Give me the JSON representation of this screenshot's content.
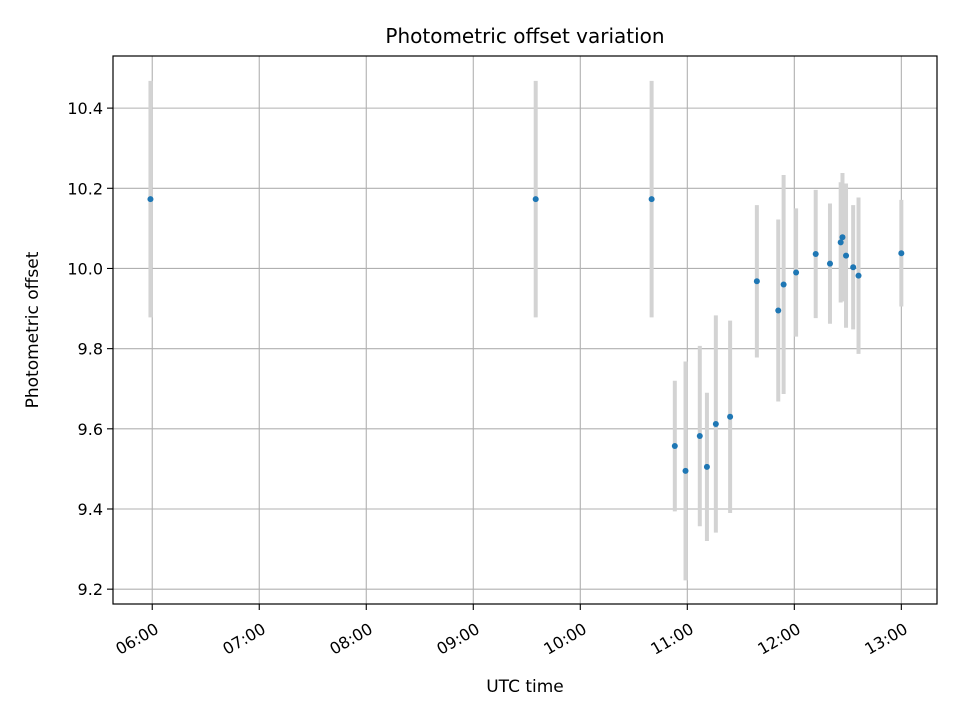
{
  "chart_data": {
    "type": "scatter",
    "title": "Photometric offset variation",
    "xlabel": "UTC time",
    "ylabel": "Photometric offset",
    "x_axis_type": "time",
    "xlim": [
      "05:38",
      "13:20"
    ],
    "ylim": [
      9.163,
      10.53
    ],
    "x_ticks": [
      "06:00",
      "07:00",
      "08:00",
      "09:00",
      "10:00",
      "11:00",
      "12:00",
      "13:00"
    ],
    "y_ticks": [
      9.2,
      9.4,
      9.6,
      9.8,
      10.0,
      10.2,
      10.4
    ],
    "y_tick_labels": [
      "9.2",
      "9.4",
      "9.6",
      "9.8",
      "10.0",
      "10.2",
      "10.4"
    ],
    "grid": true,
    "marker_color": "#1f77b4",
    "errorbar_color": "#d3d3d3",
    "series": [
      {
        "points": [
          {
            "x": "05:59",
            "y": 10.173,
            "err": 0.295
          },
          {
            "x": "09:35",
            "y": 10.173,
            "err": 0.295
          },
          {
            "x": "10:40",
            "y": 10.173,
            "err": 0.295
          },
          {
            "x": "10:53",
            "y": 9.557,
            "err": 0.163
          },
          {
            "x": "10:59",
            "y": 9.495,
            "err": 0.273
          },
          {
            "x": "11:07",
            "y": 9.582,
            "err": 0.225
          },
          {
            "x": "11:11",
            "y": 9.505,
            "err": 0.185
          },
          {
            "x": "11:16",
            "y": 9.612,
            "err": 0.271
          },
          {
            "x": "11:24",
            "y": 9.63,
            "err": 0.24
          },
          {
            "x": "11:39",
            "y": 9.968,
            "err": 0.19
          },
          {
            "x": "11:51",
            "y": 9.895,
            "err": 0.227
          },
          {
            "x": "11:54",
            "y": 9.96,
            "err": 0.273
          },
          {
            "x": "12:01",
            "y": 9.99,
            "err": 0.16
          },
          {
            "x": "12:12",
            "y": 10.036,
            "err": 0.16
          },
          {
            "x": "12:20",
            "y": 10.012,
            "err": 0.15
          },
          {
            "x": "12:26",
            "y": 10.065,
            "err": 0.15
          },
          {
            "x": "12:27",
            "y": 10.078,
            "err": 0.16
          },
          {
            "x": "12:29",
            "y": 10.032,
            "err": 0.18
          },
          {
            "x": "12:33",
            "y": 10.003,
            "err": 0.155
          },
          {
            "x": "12:36",
            "y": 9.982,
            "err": 0.195
          },
          {
            "x": "13:00",
            "y": 10.038,
            "err": 0.133
          }
        ]
      }
    ]
  }
}
